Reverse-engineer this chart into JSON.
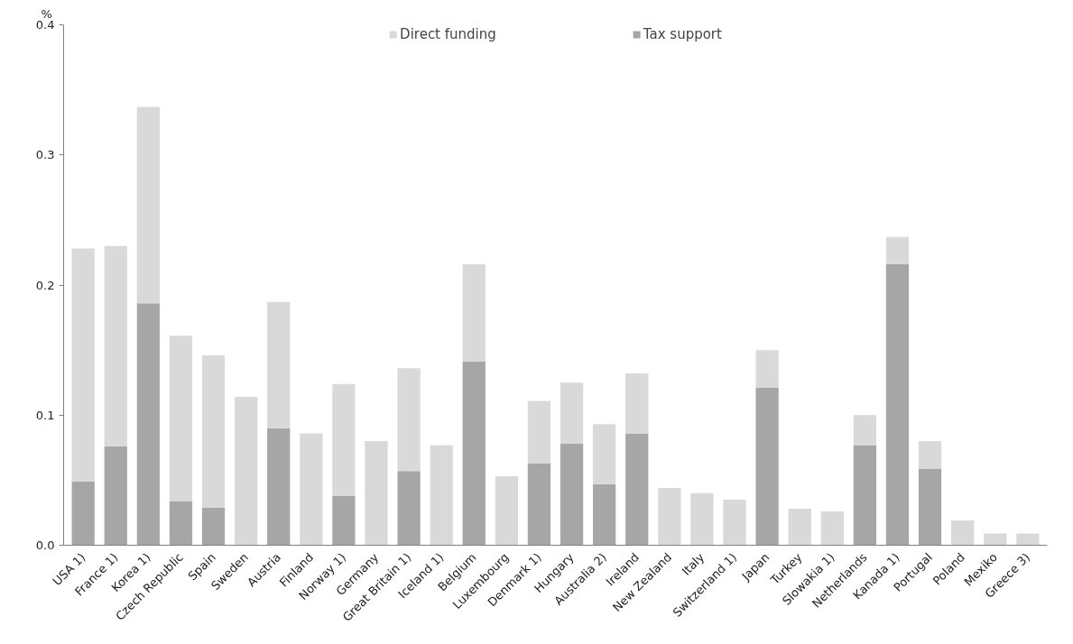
{
  "chart_data": {
    "type": "bar",
    "stacked": true,
    "ylabel": "%",
    "categories": [
      "USA 1)",
      "France 1)",
      "Korea 1)",
      "Czech Republic",
      "Spain",
      "Sweden",
      "Austria",
      "Finland",
      "Norway 1)",
      "Germany",
      "Great Britain 1)",
      "Iceland 1)",
      "Belgium",
      "Luxembourg",
      "Denmark 1)",
      "Hungary",
      "Australia 2)",
      "Ireland",
      "New Zealand",
      "Italy",
      "Switzerland 1)",
      "Japan",
      "Turkey",
      "Slowakia 1)",
      "Netherlands",
      "Kanada 1)",
      "Portugal",
      "Poland",
      "Mexiko",
      "Greece 3)"
    ],
    "series": [
      {
        "name": "Tax support",
        "color": "#a6a6a6",
        "values": [
          0.049,
          0.076,
          0.186,
          0.034,
          0.029,
          null,
          0.09,
          null,
          0.038,
          null,
          0.057,
          null,
          0.141,
          null,
          0.063,
          0.078,
          0.047,
          0.086,
          null,
          null,
          null,
          0.121,
          null,
          null,
          0.077,
          0.216,
          0.059,
          null,
          null,
          null
        ]
      },
      {
        "name": "Direct funding",
        "color": "#d9d9d9",
        "values": [
          0.179,
          0.154,
          0.151,
          0.127,
          0.117,
          0.114,
          0.097,
          0.086,
          0.086,
          0.08,
          0.079,
          0.077,
          0.075,
          0.053,
          0.048,
          0.047,
          0.046,
          0.046,
          0.044,
          0.04,
          0.035,
          0.029,
          0.028,
          0.026,
          0.023,
          0.021,
          0.021,
          0.019,
          0.009,
          0.009
        ]
      }
    ],
    "ylim": [
      0,
      0.4
    ],
    "yticks": [
      {
        "value": 0,
        "label": "0.0"
      },
      0.1,
      0.2,
      0.3,
      0.4
    ],
    "grid": false,
    "legend": "top"
  }
}
